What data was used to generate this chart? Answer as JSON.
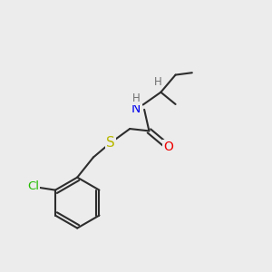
{
  "background_color": "#ececec",
  "bond_color": "#2d2d2d",
  "bond_width": 1.5,
  "atom_colors": {
    "N": "#0000ee",
    "O": "#ee0000",
    "S": "#b8b800",
    "Cl": "#22bb00",
    "H": "#707070",
    "C": "#2d2d2d"
  },
  "font_size_atom": 10,
  "font_size_H": 8.5,
  "font_size_Cl": 9.5
}
